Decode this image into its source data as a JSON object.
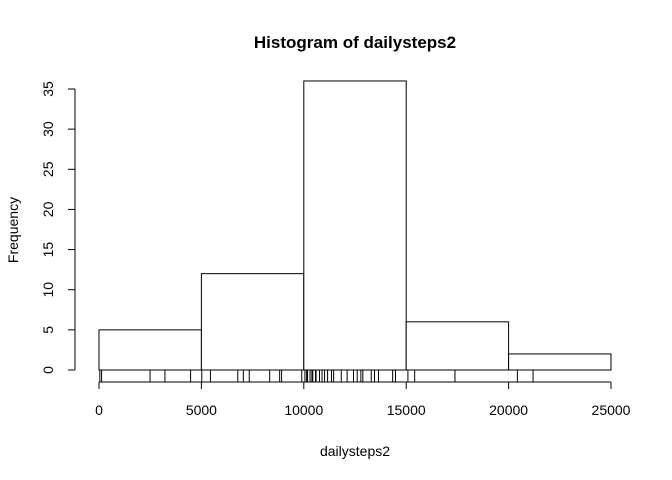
{
  "chart_data": {
    "type": "bar",
    "title": "Histogram of dailysteps2",
    "xlabel": "dailysteps2",
    "ylabel": "Frequency",
    "bins": [
      {
        "start": 0,
        "end": 5000,
        "count": 5
      },
      {
        "start": 5000,
        "end": 10000,
        "count": 12
      },
      {
        "start": 10000,
        "end": 15000,
        "count": 36
      },
      {
        "start": 15000,
        "end": 20000,
        "count": 6
      },
      {
        "start": 20000,
        "end": 25000,
        "count": 2
      }
    ],
    "xlim": [
      0,
      25000
    ],
    "ylim": [
      0,
      35
    ],
    "xticks": [
      0,
      5000,
      10000,
      15000,
      20000,
      25000
    ],
    "yticks": [
      0,
      5,
      10,
      15,
      20,
      25,
      30,
      35
    ],
    "rug": [
      41,
      126,
      2492,
      3219,
      4472,
      5018,
      5441,
      6778,
      7047,
      7336,
      8334,
      8821,
      8918,
      9900,
      10056,
      10139,
      10183,
      10304,
      10395,
      10439,
      10571,
      10600,
      10765,
      10890,
      11015,
      11162,
      11352,
      11458,
      11829,
      12116,
      12426,
      12608,
      12787,
      12883,
      13294,
      13452,
      13646,
      14339,
      14478,
      15084,
      15414,
      17382,
      20427,
      21194
    ],
    "grid": false,
    "legend": "none"
  }
}
